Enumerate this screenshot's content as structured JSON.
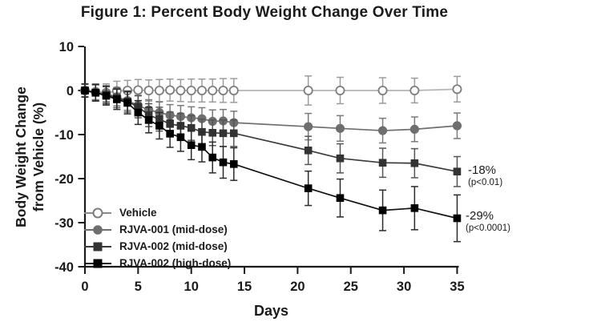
{
  "figure": {
    "title": "Figure 1: Percent Body Weight Change Over Time"
  },
  "chart_data": {
    "type": "line",
    "title": "Figure 1: Percent Body Weight Change Over Time",
    "xlabel": "Days",
    "ylabel_line1": "Body Weight Change",
    "ylabel_line2": "from Vehicle (%)",
    "xlim": [
      0,
      35
    ],
    "ylim": [
      -40,
      10
    ],
    "x_ticks": [
      0,
      5,
      10,
      15,
      20,
      25,
      30,
      35
    ],
    "y_ticks": [
      10,
      0,
      -10,
      -20,
      -30,
      -40
    ],
    "grid": false,
    "legend_position": "inside-bottom-left",
    "x": [
      0,
      1,
      2,
      3,
      4,
      5,
      6,
      7,
      8,
      9,
      10,
      11,
      12,
      13,
      14,
      21,
      24,
      28,
      31,
      35
    ],
    "series": [
      {
        "name": "Vehicle",
        "marker": "open-circle",
        "marker_color": "#7d7d7d",
        "line_color": "#b5b5b5",
        "error_color": "#9c9c9c",
        "values": [
          0,
          -0.3,
          -0.5,
          -0.1,
          0,
          0.1,
          0,
          0,
          0.1,
          0,
          0,
          0,
          0,
          0,
          0,
          0,
          0,
          0,
          0,
          0.3
        ],
        "errors": [
          1.5,
          1.8,
          2.0,
          2.2,
          2.3,
          2.4,
          2.4,
          2.5,
          2.5,
          2.5,
          2.6,
          2.6,
          2.6,
          2.7,
          2.7,
          3.3,
          3.0,
          2.9,
          2.8,
          2.9
        ]
      },
      {
        "name": "RJVA-001 (mid-dose)",
        "marker": "filled-circle",
        "marker_color": "#6e6e6e",
        "line_color": "#6e6e6e",
        "error_color": "#7a7a7a",
        "values": [
          0,
          -0.4,
          -0.8,
          -1.4,
          -2.3,
          -3.4,
          -4.4,
          -5.0,
          -5.6,
          -5.9,
          -6.2,
          -6.4,
          -7.0,
          -6.9,
          -7.3,
          -8.2,
          -8.6,
          -9.1,
          -8.8,
          -8.0
        ],
        "errors": [
          1.4,
          1.7,
          1.9,
          2.1,
          2.2,
          2.3,
          2.3,
          2.4,
          2.4,
          2.5,
          2.5,
          2.5,
          2.6,
          2.6,
          2.6,
          3.0,
          2.9,
          2.8,
          2.8,
          2.9
        ]
      },
      {
        "name": "RJVA-002 (mid-dose)",
        "marker": "filled-square",
        "marker_color": "#333333",
        "line_color": "#3a3a3a",
        "error_color": "#555555",
        "values": [
          0,
          -0.5,
          -1.0,
          -1.7,
          -2.5,
          -3.7,
          -5.6,
          -6.5,
          -7.6,
          -8.0,
          -8.5,
          -9.4,
          -9.6,
          -9.7,
          -9.7,
          -13.6,
          -15.4,
          -16.4,
          -16.5,
          -18.4
        ],
        "errors": [
          1.5,
          1.8,
          2.0,
          2.2,
          2.4,
          2.5,
          2.6,
          2.7,
          2.7,
          2.8,
          2.8,
          2.9,
          2.9,
          3.0,
          3.0,
          3.2,
          3.3,
          3.3,
          3.3,
          3.4
        ]
      },
      {
        "name": "RJVA-002 (high-dose)",
        "marker": "filled-square",
        "marker_color": "#000000",
        "line_color": "#111111",
        "error_color": "#2b2b2b",
        "values": [
          0,
          -0.5,
          -1.2,
          -2.0,
          -2.8,
          -5.0,
          -6.7,
          -8.0,
          -9.8,
          -10.6,
          -12.4,
          -12.8,
          -15.2,
          -16.3,
          -16.7,
          -22.2,
          -24.4,
          -27.2,
          -26.7,
          -29.0
        ],
        "errors": [
          1.5,
          1.9,
          2.1,
          2.3,
          2.5,
          2.7,
          2.9,
          3.0,
          3.1,
          3.2,
          3.3,
          3.4,
          3.5,
          3.6,
          3.7,
          3.9,
          4.3,
          4.6,
          4.9,
          5.3
        ]
      }
    ],
    "annotations": [
      {
        "text": "-18%",
        "sub": "(p<0.01)",
        "x": 35,
        "y": -18.4
      },
      {
        "text": "-29%",
        "sub": "(p<0.0001)",
        "x": 35,
        "y": -29.0
      }
    ],
    "axis_color": "#1a1a1a"
  }
}
